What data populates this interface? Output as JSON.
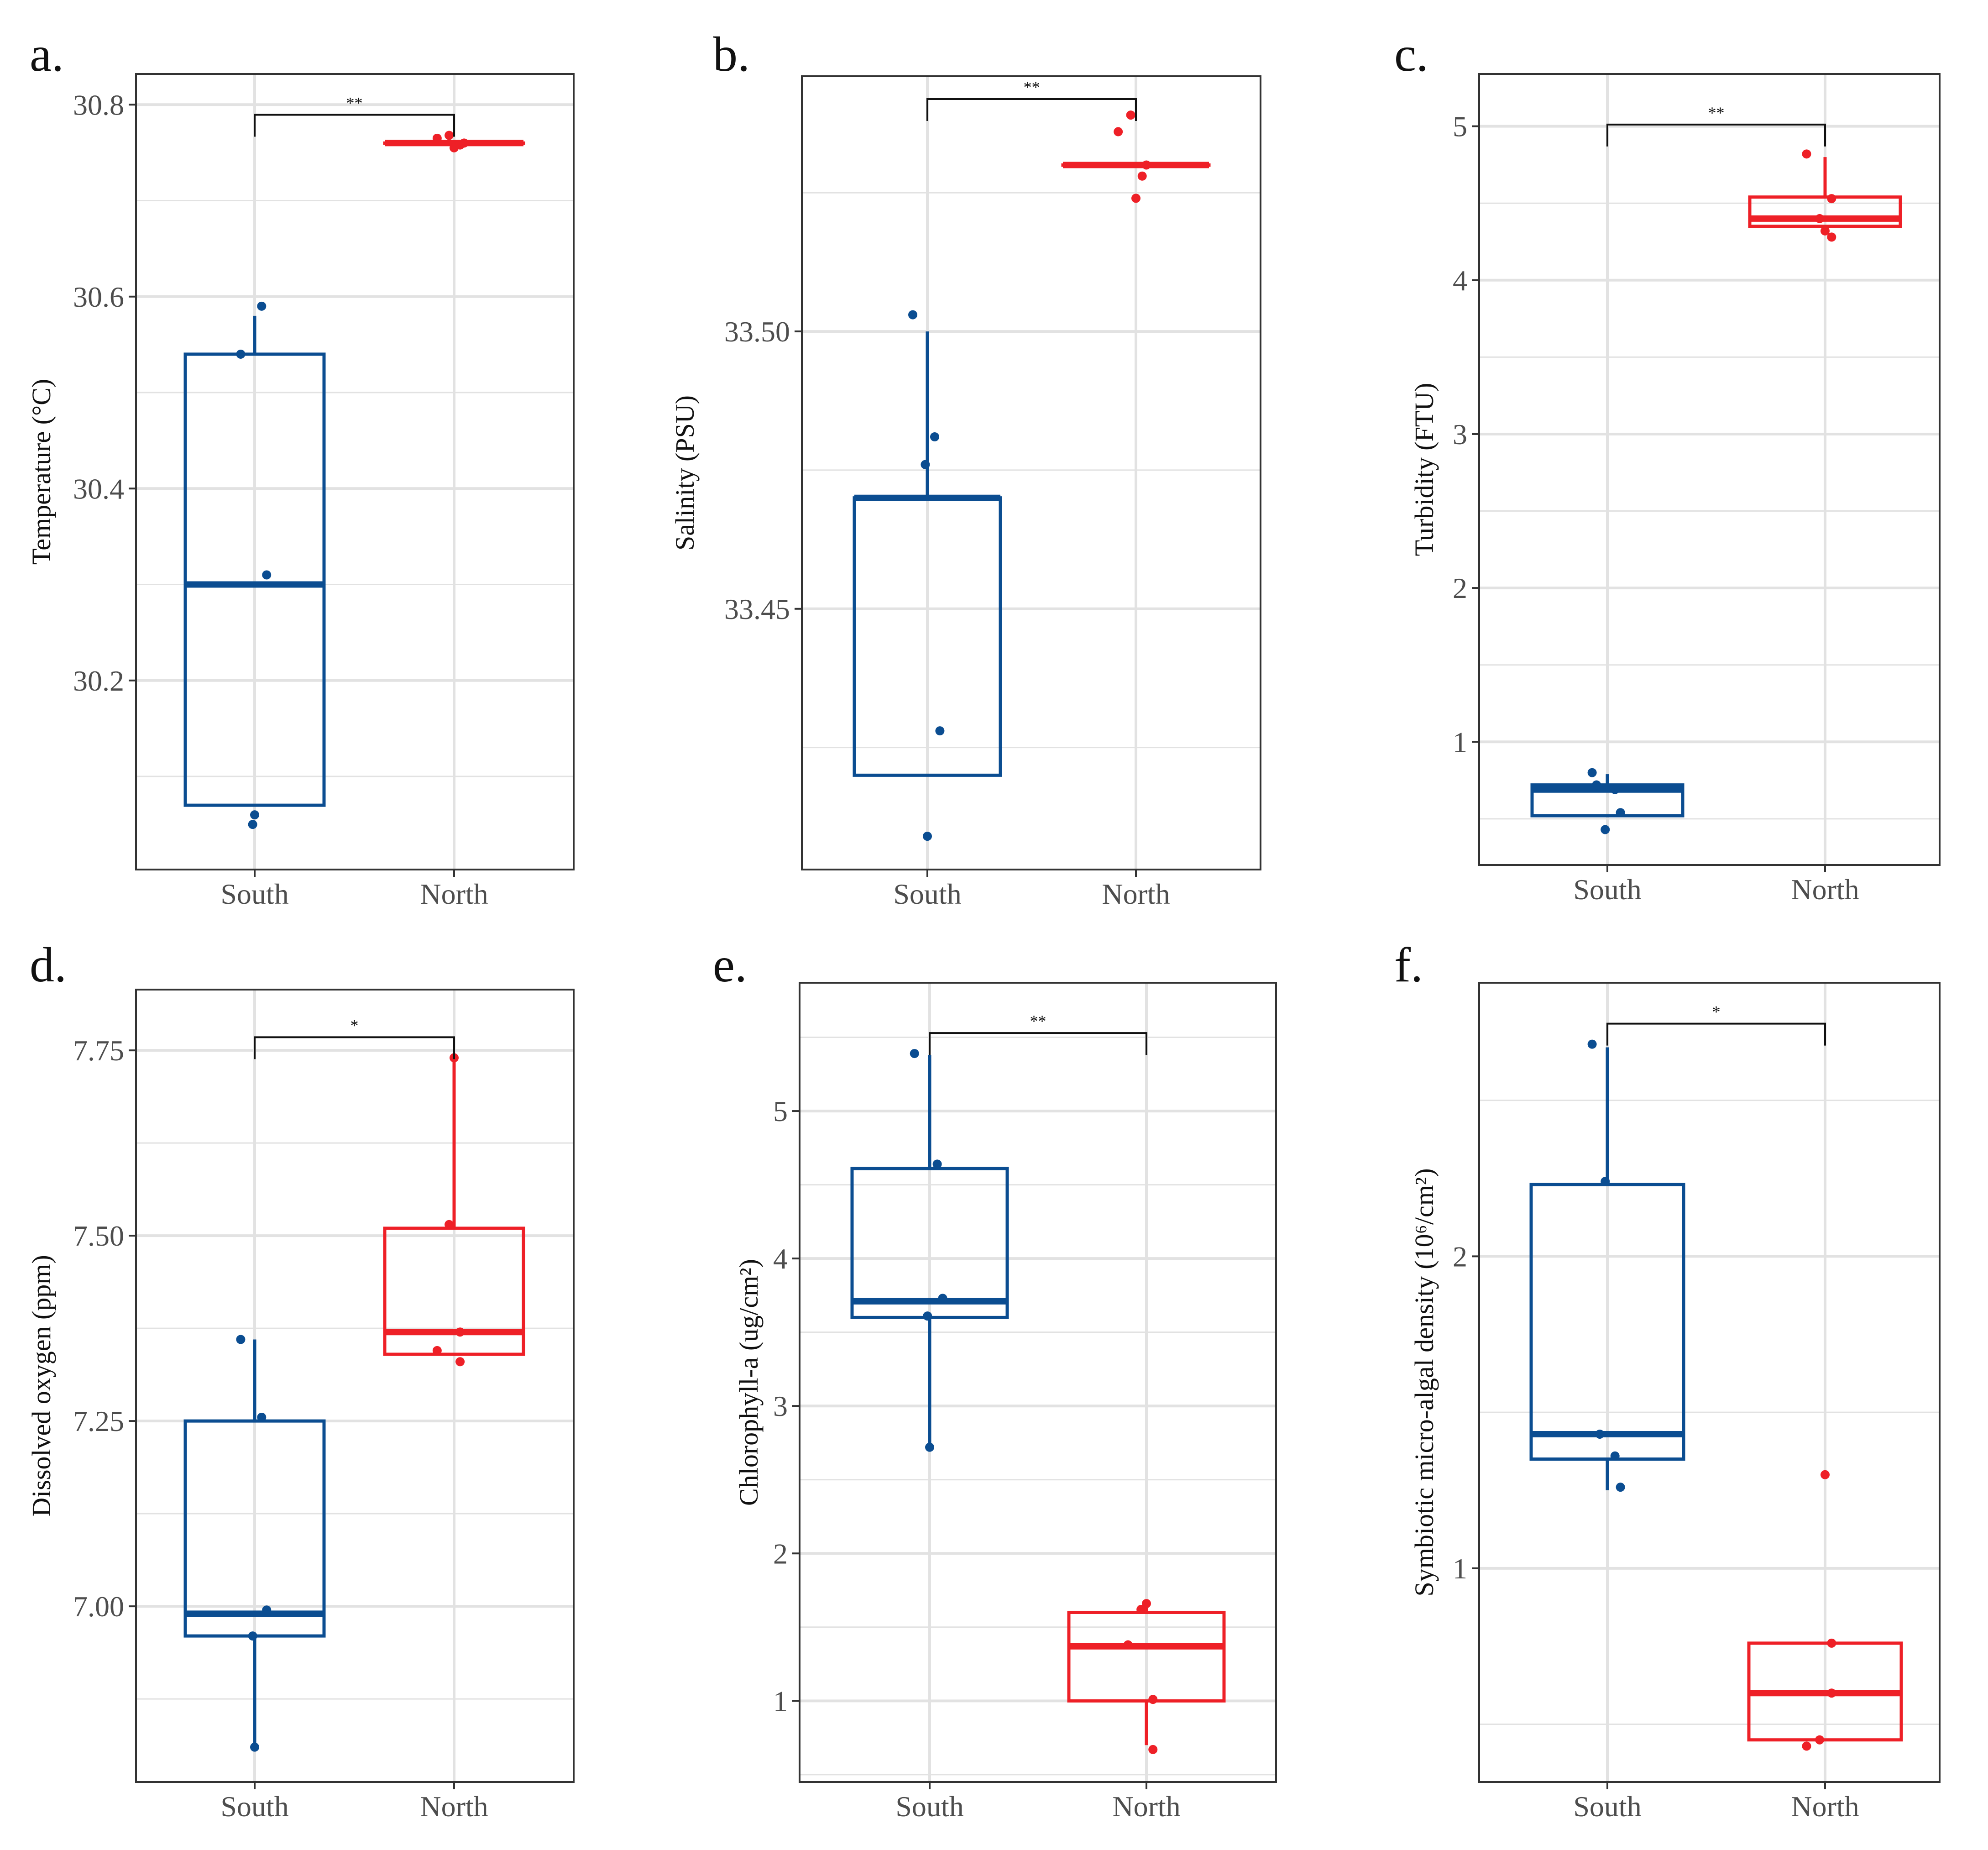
{
  "figure": {
    "colors": {
      "south": "#0b4d91",
      "north": "#ee2027",
      "grid": "#e2e2e2",
      "frame": "#333333"
    }
  },
  "chart_data": [
    {
      "type": "box",
      "label": "a.",
      "ylabel": "Temperature (°C)",
      "categories": [
        "South",
        "North"
      ],
      "ylim": [
        30.003,
        30.832
      ],
      "yticks": [
        30.2,
        30.4,
        30.6,
        30.8
      ],
      "tick_labels": [
        "30.2",
        "30.4",
        "30.6",
        "30.8"
      ],
      "significance": "**",
      "boxes": [
        {
          "group": "South",
          "whisker_low": 30.07,
          "q1": 30.07,
          "median": 30.3,
          "q3": 30.54,
          "whisker_high": 30.58,
          "points": [
            [
              -0.14,
              30.54
            ],
            [
              0.07,
              30.59
            ],
            [
              0.12,
              30.31
            ],
            [
              0.0,
              30.06
            ],
            [
              -0.02,
              30.05
            ]
          ]
        },
        {
          "group": "North",
          "whisker_low": 30.76,
          "q1": 30.76,
          "median": 30.76,
          "q3": 30.76,
          "whisker_high": 30.76,
          "points": [
            [
              -0.17,
              30.765
            ],
            [
              -0.05,
              30.768
            ],
            [
              0.0,
              30.755
            ],
            [
              0.06,
              30.758
            ],
            [
              0.1,
              30.76
            ]
          ]
        }
      ]
    },
    {
      "type": "box",
      "label": "b.",
      "ylabel": "Salinity (PSU)",
      "categories": [
        "South",
        "North"
      ],
      "ylim": [
        33.403,
        33.546
      ],
      "yticks": [
        33.45,
        33.5
      ],
      "tick_labels": [
        "33.45",
        "33.50"
      ],
      "significance": "**",
      "boxes": [
        {
          "group": "South",
          "whisker_low": 33.42,
          "q1": 33.42,
          "median": 33.47,
          "q3": 33.47,
          "whisker_high": 33.5,
          "points": [
            [
              -0.14,
              33.503
            ],
            [
              -0.02,
              33.476
            ],
            [
              0.07,
              33.481
            ],
            [
              0.12,
              33.428
            ],
            [
              0.0,
              33.409
            ]
          ]
        },
        {
          "group": "North",
          "whisker_low": 33.53,
          "q1": 33.53,
          "median": 33.53,
          "q3": 33.53,
          "whisker_high": 33.53,
          "points": [
            [
              -0.17,
              33.536
            ],
            [
              -0.05,
              33.539
            ],
            [
              0.0,
              33.524
            ],
            [
              0.06,
              33.528
            ],
            [
              0.1,
              33.53
            ]
          ]
        }
      ]
    },
    {
      "type": "box",
      "label": "c.",
      "ylabel": "Turbidity (FTU)",
      "categories": [
        "South",
        "North"
      ],
      "ylim": [
        0.2,
        5.34
      ],
      "yticks": [
        1,
        2,
        3,
        4,
        5
      ],
      "tick_labels": [
        "1",
        "2",
        "3",
        "4",
        "5"
      ],
      "significance": "**",
      "boxes": [
        {
          "group": "South",
          "whisker_low": 0.52,
          "q1": 0.52,
          "median": 0.69,
          "q3": 0.72,
          "whisker_high": 0.79,
          "points": [
            [
              -0.14,
              0.8
            ],
            [
              -0.1,
              0.72
            ],
            [
              0.07,
              0.69
            ],
            [
              0.12,
              0.54
            ],
            [
              -0.02,
              0.43
            ]
          ]
        },
        {
          "group": "North",
          "whisker_low": 4.35,
          "q1": 4.35,
          "median": 4.4,
          "q3": 4.54,
          "whisker_high": 4.8,
          "points": [
            [
              -0.17,
              4.82
            ],
            [
              -0.05,
              4.4
            ],
            [
              0.0,
              4.32
            ],
            [
              0.06,
              4.53
            ],
            [
              0.06,
              4.28
            ]
          ]
        }
      ]
    },
    {
      "type": "box",
      "label": "d.",
      "ylabel": "Dissolved oxygen (ppm)",
      "categories": [
        "South",
        "North"
      ],
      "ylim": [
        6.763,
        7.832
      ],
      "yticks": [
        7.0,
        7.25,
        7.5,
        7.75
      ],
      "tick_labels": [
        "7.00",
        "7.25",
        "7.50",
        "7.75"
      ],
      "significance": "*",
      "boxes": [
        {
          "group": "South",
          "whisker_low": 6.81,
          "q1": 6.96,
          "median": 6.99,
          "q3": 7.25,
          "whisker_high": 7.36,
          "points": [
            [
              -0.14,
              7.36
            ],
            [
              0.07,
              7.255
            ],
            [
              0.12,
              6.995
            ],
            [
              -0.02,
              6.96
            ],
            [
              0.0,
              6.81
            ]
          ]
        },
        {
          "group": "North",
          "whisker_low": 7.34,
          "q1": 7.34,
          "median": 7.37,
          "q3": 7.51,
          "whisker_high": 7.74,
          "points": [
            [
              0.0,
              7.74
            ],
            [
              -0.05,
              7.515
            ],
            [
              0.06,
              7.37
            ],
            [
              -0.17,
              7.345
            ],
            [
              0.06,
              7.33
            ]
          ]
        }
      ]
    },
    {
      "type": "box",
      "label": "e.",
      "ylabel": "Chlorophyll-a (ug/cm²)",
      "categories": [
        "South",
        "North"
      ],
      "ylim": [
        0.45,
        5.87
      ],
      "yticks": [
        1,
        2,
        3,
        4,
        5
      ],
      "tick_labels": [
        "1",
        "2",
        "3",
        "4",
        "5"
      ],
      "significance": "**",
      "boxes": [
        {
          "group": "South",
          "whisker_low": 2.72,
          "q1": 3.6,
          "median": 3.71,
          "q3": 4.61,
          "whisker_high": 5.38,
          "points": [
            [
              -0.14,
              5.39
            ],
            [
              0.07,
              4.64
            ],
            [
              0.12,
              3.73
            ],
            [
              -0.02,
              3.61
            ],
            [
              0.0,
              2.72
            ]
          ]
        },
        {
          "group": "North",
          "whisker_low": 0.7,
          "q1": 1.0,
          "median": 1.37,
          "q3": 1.6,
          "whisker_high": 1.65,
          "points": [
            [
              -0.17,
              1.38
            ],
            [
              -0.05,
              1.62
            ],
            [
              0.0,
              1.66
            ],
            [
              0.06,
              1.01
            ],
            [
              0.06,
              0.67
            ]
          ]
        }
      ]
    },
    {
      "type": "box",
      "label": "f.",
      "ylabel": "Symbiotic micro-algal density (10⁶/cm²)",
      "categories": [
        "South",
        "North"
      ],
      "ylim": [
        0.315,
        2.877
      ],
      "yticks": [
        1,
        2
      ],
      "tick_labels": [
        "1",
        "2"
      ],
      "significance": "*",
      "boxes": [
        {
          "group": "South",
          "whisker_low": 1.25,
          "q1": 1.35,
          "median": 1.43,
          "q3": 2.23,
          "whisker_high": 2.67,
          "points": [
            [
              -0.14,
              2.68
            ],
            [
              -0.02,
              2.24
            ],
            [
              -0.07,
              1.43
            ],
            [
              0.07,
              1.36
            ],
            [
              0.12,
              1.26
            ]
          ]
        },
        {
          "group": "North",
          "whisker_low": 0.45,
          "q1": 0.45,
          "median": 0.6,
          "q3": 0.76,
          "whisker_high": 0.76,
          "points": [
            [
              0.0,
              1.3
            ],
            [
              0.06,
              0.76
            ],
            [
              0.06,
              0.6
            ],
            [
              -0.17,
              0.43
            ],
            [
              -0.05,
              0.45
            ]
          ]
        }
      ]
    }
  ]
}
